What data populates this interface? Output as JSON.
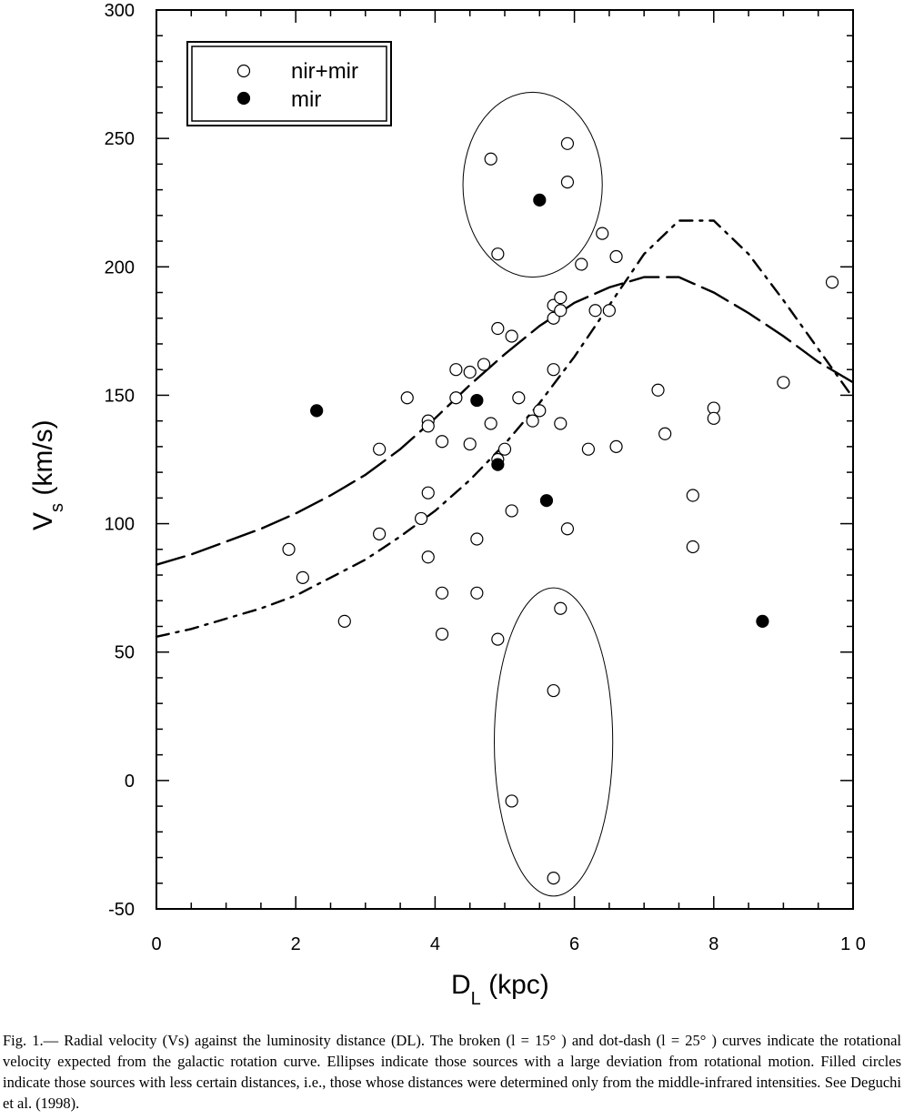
{
  "chart_data": {
    "type": "scatter",
    "title": "",
    "xlabel_main": "D",
    "xlabel_sub": "L",
    "xlabel_unit": " (kpc)",
    "ylabel_main": "V",
    "ylabel_sub": "s",
    "ylabel_unit": " (km/s)",
    "xlim": [
      0,
      10
    ],
    "ylim": [
      -50,
      300
    ],
    "xticks": [
      0,
      2,
      4,
      6,
      8,
      10
    ],
    "yticks": [
      -50,
      0,
      50,
      100,
      150,
      200,
      250,
      300
    ],
    "xtick_labels": [
      "0",
      "2",
      "4",
      "6",
      "8",
      "1 0"
    ],
    "ytick_labels": [
      "-50",
      "0",
      "50",
      "100",
      "150",
      "200",
      "250",
      "300"
    ],
    "grid": false,
    "legend_position": "top-left",
    "series": [
      {
        "name": "nir+mir",
        "marker": "open-circle",
        "points": [
          [
            1.9,
            90
          ],
          [
            2.1,
            79
          ],
          [
            2.7,
            62
          ],
          [
            3.2,
            129
          ],
          [
            3.2,
            96
          ],
          [
            3.6,
            149
          ],
          [
            3.8,
            102
          ],
          [
            3.9,
            140
          ],
          [
            3.9,
            138
          ],
          [
            3.9,
            112
          ],
          [
            3.9,
            87
          ],
          [
            4.1,
            132
          ],
          [
            4.1,
            73
          ],
          [
            4.1,
            57
          ],
          [
            4.3,
            160
          ],
          [
            4.3,
            149
          ],
          [
            4.5,
            159
          ],
          [
            4.5,
            131
          ],
          [
            4.6,
            94
          ],
          [
            4.6,
            73
          ],
          [
            4.7,
            162
          ],
          [
            4.8,
            242
          ],
          [
            4.8,
            139
          ],
          [
            4.9,
            205
          ],
          [
            4.9,
            176
          ],
          [
            4.9,
            125
          ],
          [
            4.9,
            55
          ],
          [
            5.0,
            129
          ],
          [
            5.1,
            173
          ],
          [
            5.1,
            105
          ],
          [
            5.1,
            -8
          ],
          [
            5.2,
            149
          ],
          [
            5.4,
            140
          ],
          [
            5.5,
            144
          ],
          [
            5.7,
            185
          ],
          [
            5.7,
            180
          ],
          [
            5.7,
            160
          ],
          [
            5.7,
            35
          ],
          [
            5.7,
            -38
          ],
          [
            5.8,
            188
          ],
          [
            5.8,
            183
          ],
          [
            5.8,
            139
          ],
          [
            5.8,
            67
          ],
          [
            5.9,
            248
          ],
          [
            5.9,
            233
          ],
          [
            5.9,
            98
          ],
          [
            6.1,
            201
          ],
          [
            6.2,
            129
          ],
          [
            6.3,
            183
          ],
          [
            6.4,
            213
          ],
          [
            6.5,
            183
          ],
          [
            6.6,
            204
          ],
          [
            6.6,
            130
          ],
          [
            7.2,
            152
          ],
          [
            7.3,
            135
          ],
          [
            7.7,
            91
          ],
          [
            7.7,
            111
          ],
          [
            8.0,
            145
          ],
          [
            8.0,
            141
          ],
          [
            9.0,
            155
          ],
          [
            9.7,
            194
          ]
        ]
      },
      {
        "name": "mir",
        "marker": "filled-circle",
        "points": [
          [
            2.3,
            144
          ],
          [
            4.6,
            148
          ],
          [
            4.9,
            123
          ],
          [
            5.5,
            226
          ],
          [
            5.6,
            109
          ],
          [
            8.7,
            62
          ]
        ]
      }
    ],
    "curves": [
      {
        "style": "broken",
        "points": [
          [
            0,
            84
          ],
          [
            0.5,
            88
          ],
          [
            1,
            93
          ],
          [
            1.5,
            98
          ],
          [
            2,
            104
          ],
          [
            2.5,
            111
          ],
          [
            3,
            119
          ],
          [
            3.5,
            129
          ],
          [
            4,
            141
          ],
          [
            4.5,
            154
          ],
          [
            5,
            166
          ],
          [
            5.5,
            177
          ],
          [
            6,
            186
          ],
          [
            6.5,
            192
          ],
          [
            7,
            196
          ],
          [
            7.5,
            196
          ],
          [
            8,
            190
          ],
          [
            8.5,
            182
          ],
          [
            9,
            173
          ],
          [
            9.5,
            163
          ],
          [
            10,
            155
          ]
        ]
      },
      {
        "style": "dot-dash",
        "points": [
          [
            0,
            56
          ],
          [
            0.5,
            59
          ],
          [
            1,
            63
          ],
          [
            1.5,
            67
          ],
          [
            2,
            72
          ],
          [
            2.5,
            79
          ],
          [
            3,
            86
          ],
          [
            3.5,
            95
          ],
          [
            4,
            105
          ],
          [
            4.5,
            117
          ],
          [
            5,
            131
          ],
          [
            5.5,
            147
          ],
          [
            6,
            165
          ],
          [
            6.5,
            185
          ],
          [
            7,
            205
          ],
          [
            7.5,
            218
          ],
          [
            8,
            218
          ],
          [
            8.5,
            205
          ],
          [
            9,
            187
          ],
          [
            9.5,
            168
          ],
          [
            10,
            149
          ]
        ]
      }
    ],
    "ellipses_data": [
      {
        "cx": 5.4,
        "cy": 232,
        "rx": 1.0,
        "ry": 36
      },
      {
        "cx": 5.7,
        "cy": 15,
        "rx": 0.85,
        "ry": 60
      }
    ]
  },
  "legend": {
    "nir_mir": "nir+mir",
    "mir": "mir"
  },
  "caption": "Fig. 1.— Radial velocity (Vs) against the luminosity distance (DL). The broken (l = 15° ) and dot-dash (l = 25° ) curves indicate the rotational velocity expected from the galactic rotation curve. Ellipses indicate those sources with a large deviation from rotational motion. Filled circles indicate those sources with less certain distances, i.e., those whose distances were determined only from the middle-infrared intensities. See Deguchi et al. (1998)."
}
